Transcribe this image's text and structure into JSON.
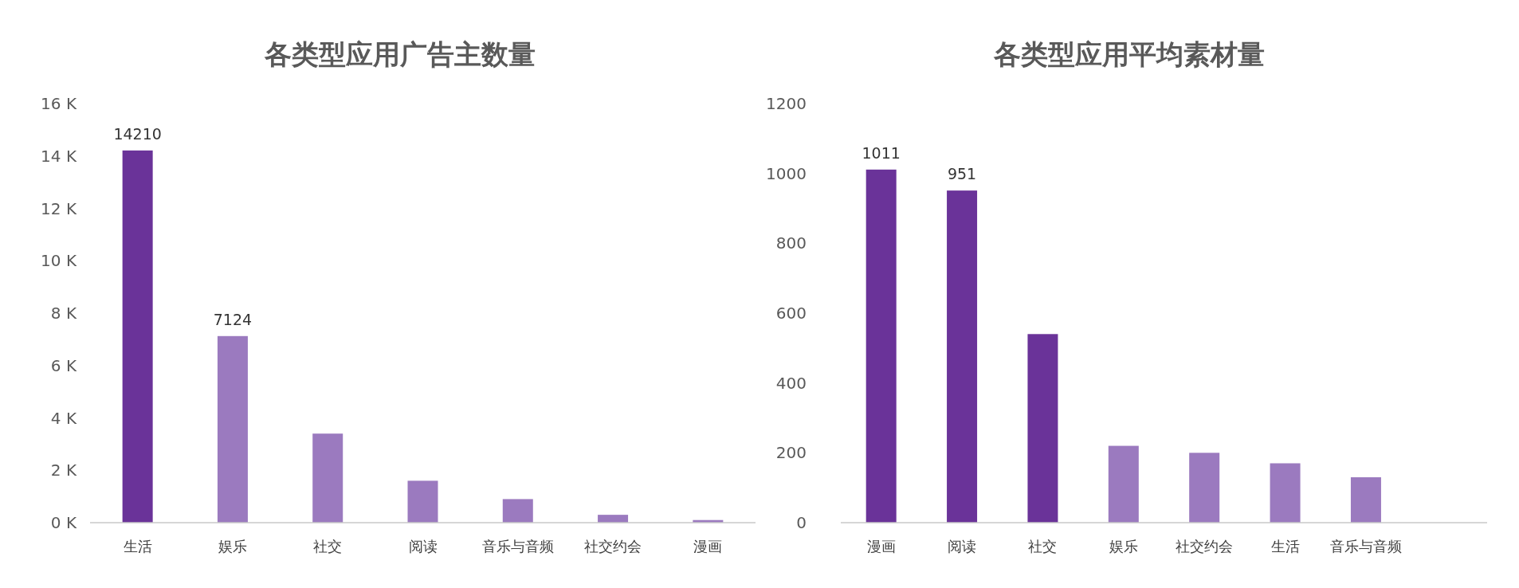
{
  "chart_data": [
    {
      "type": "bar",
      "title": "各类型应用广告主数量",
      "categories": [
        "生活",
        "娱乐",
        "社交",
        "阅读",
        "音乐与音频",
        "社交约会",
        "漫画"
      ],
      "values": [
        14210,
        7124,
        3400,
        1600,
        900,
        300,
        100
      ],
      "colors": [
        "#6a3399",
        "#9b7abf",
        "#9b7abf",
        "#9b7abf",
        "#9b7abf",
        "#9b7abf",
        "#9b7abf"
      ],
      "value_labels": [
        "14210",
        "7124",
        null,
        null,
        null,
        null,
        null
      ],
      "ylim": [
        0,
        16000
      ],
      "yticks": [
        {
          "value": 0,
          "label": "0 K"
        },
        {
          "value": 2000,
          "label": "2 K"
        },
        {
          "value": 4000,
          "label": "4 K"
        },
        {
          "value": 6000,
          "label": "6 K"
        },
        {
          "value": 8000,
          "label": "8 K"
        },
        {
          "value": 10000,
          "label": "10 K"
        },
        {
          "value": 12000,
          "label": "12 K"
        },
        {
          "value": 14000,
          "label": "14 K"
        },
        {
          "value": 16000,
          "label": "16 K"
        }
      ]
    },
    {
      "type": "bar",
      "title": "各类型应用平均素材量",
      "categories": [
        "漫画",
        "阅读",
        "社交",
        "娱乐",
        "社交约会",
        "生活",
        "音乐与音频",
        null
      ],
      "values": [
        1011,
        951,
        540,
        220,
        200,
        170,
        130,
        null
      ],
      "colors": [
        "#6a3399",
        "#6a3399",
        "#6a3399",
        "#9b7abf",
        "#9b7abf",
        "#9b7abf",
        "#9b7abf",
        null
      ],
      "value_labels": [
        "1011",
        "951",
        null,
        null,
        null,
        null,
        null,
        null
      ],
      "ylim": [
        0,
        1200
      ],
      "yticks": [
        0,
        200,
        400,
        600,
        800,
        1000,
        1200
      ]
    }
  ]
}
